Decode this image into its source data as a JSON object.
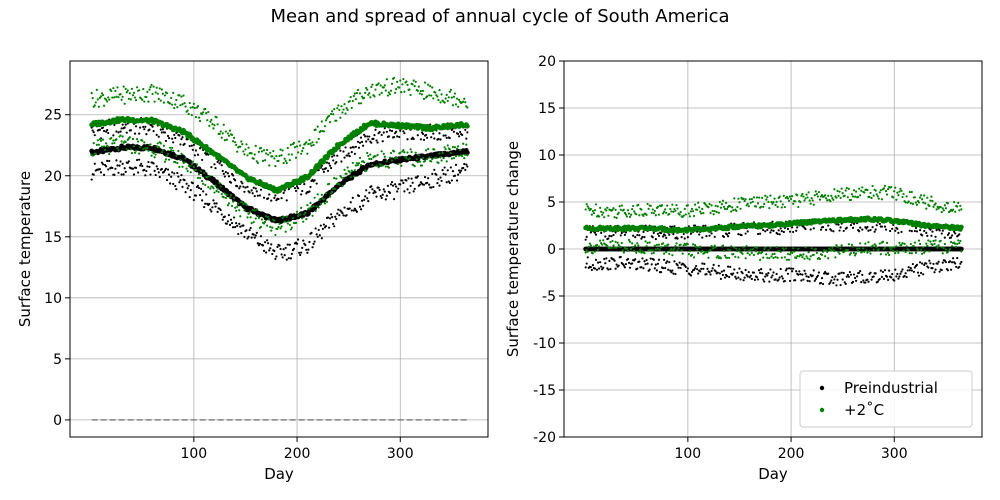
{
  "figure": {
    "suptitle": "Mean and spread of annual cycle of South America"
  },
  "chart_data": [
    {
      "type": "scatter",
      "title": "",
      "xlabel": "Day",
      "ylabel": "Surface temperature",
      "xlim": [
        -20,
        385
      ],
      "ylim": [
        -1.4,
        29.4
      ],
      "xticks": [
        100,
        200,
        300
      ],
      "yticks": [
        0,
        5,
        10,
        15,
        20,
        25
      ],
      "grid": true,
      "reference_line": {
        "y": 0,
        "style": "dashed",
        "color": "#808080"
      },
      "x": [
        1,
        30,
        60,
        90,
        120,
        150,
        180,
        210,
        240,
        270,
        300,
        330,
        365
      ],
      "series": [
        {
          "name": "Preindustrial",
          "role": "mean",
          "color": "#000000",
          "values": [
            21.9,
            22.3,
            22.3,
            21.4,
            19.5,
            17.4,
            16.3,
            16.9,
            19.2,
            20.9,
            21.3,
            21.6,
            22.0
          ]
        },
        {
          "name": "Preindustrial",
          "role": "upper",
          "color": "#000000",
          "values": [
            23.6,
            24.1,
            24.0,
            23.0,
            21.2,
            19.2,
            18.4,
            19.2,
            21.6,
            23.3,
            23.6,
            23.5,
            23.7
          ]
        },
        {
          "name": "Preindustrial",
          "role": "lower",
          "color": "#000000",
          "values": [
            20.3,
            20.8,
            20.5,
            19.3,
            17.5,
            15.4,
            13.6,
            14.3,
            16.8,
            18.4,
            18.9,
            19.7,
            20.5
          ]
        },
        {
          "name": "+2°C",
          "role": "mean",
          "color": "#008000",
          "values": [
            24.2,
            24.6,
            24.5,
            23.6,
            21.8,
            19.9,
            18.8,
            19.9,
            22.5,
            24.3,
            24.1,
            23.9,
            24.2
          ]
        },
        {
          "name": "+2°C",
          "role": "upper",
          "color": "#008000",
          "values": [
            26.3,
            26.6,
            26.8,
            26.0,
            24.3,
            22.0,
            21.3,
            22.5,
            25.3,
            27.0,
            27.4,
            26.8,
            26.2
          ]
        },
        {
          "name": "+2°C",
          "role": "lower",
          "color": "#008000",
          "values": [
            22.2,
            22.6,
            22.3,
            21.2,
            19.2,
            17.0,
            15.8,
            16.9,
            19.5,
            21.3,
            21.4,
            21.6,
            22.2
          ]
        }
      ]
    },
    {
      "type": "scatter",
      "title": "",
      "xlabel": "Day",
      "ylabel": "Surface temperature change",
      "xlim": [
        -20,
        385
      ],
      "ylim": [
        -20,
        20
      ],
      "xticks": [
        100,
        200,
        300
      ],
      "yticks": [
        -20,
        -15,
        -10,
        -5,
        0,
        5,
        10,
        15,
        20
      ],
      "grid": true,
      "reference_line": {
        "y": 0,
        "style": "solid",
        "color": "#000000"
      },
      "legend": {
        "placement": "lower-right",
        "entries": [
          {
            "label": "Preindustrial",
            "color": "#000000"
          },
          {
            "label": "+2˚C",
            "color": "#008000"
          }
        ]
      },
      "x": [
        1,
        30,
        60,
        90,
        120,
        150,
        180,
        210,
        240,
        270,
        300,
        330,
        365
      ],
      "series": [
        {
          "name": "Preindustrial",
          "role": "mean",
          "color": "#000000",
          "values": [
            0,
            0,
            0,
            0,
            0,
            0,
            0,
            0,
            0,
            0,
            0,
            0,
            0
          ]
        },
        {
          "name": "Preindustrial",
          "role": "upper",
          "color": "#000000",
          "values": [
            1.7,
            1.8,
            1.8,
            1.7,
            1.9,
            2.1,
            2.2,
            2.4,
            2.6,
            2.6,
            2.4,
            2.0,
            1.8
          ]
        },
        {
          "name": "Preindustrial",
          "role": "lower",
          "color": "#000000",
          "values": [
            -1.6,
            -1.5,
            -1.7,
            -2.0,
            -2.3,
            -2.7,
            -2.8,
            -2.7,
            -3.3,
            -3.0,
            -2.7,
            -2.0,
            -1.5
          ]
        },
        {
          "name": "+2˚C",
          "role": "mean",
          "color": "#008000",
          "values": [
            2.2,
            2.2,
            2.2,
            2.0,
            2.1,
            2.4,
            2.5,
            2.8,
            3.0,
            3.2,
            3.0,
            2.5,
            2.2
          ]
        },
        {
          "name": "+2˚C",
          "role": "upper",
          "color": "#008000",
          "values": [
            4.2,
            4.0,
            4.2,
            4.1,
            4.3,
            4.8,
            5.0,
            5.2,
            5.7,
            6.0,
            6.0,
            5.0,
            4.2
          ]
        },
        {
          "name": "+2˚C",
          "role": "lower",
          "color": "#008000",
          "values": [
            0.2,
            0.3,
            0.2,
            -0.1,
            -0.3,
            -0.4,
            -0.5,
            -0.5,
            -0.3,
            0.0,
            0.1,
            0.2,
            0.2
          ]
        }
      ]
    }
  ]
}
